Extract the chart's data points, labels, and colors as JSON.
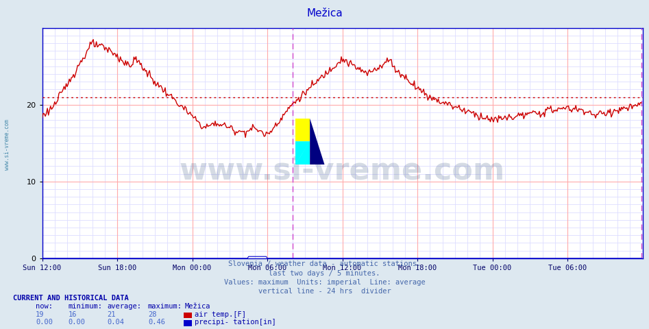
{
  "title": "Mežica",
  "title_color": "#0000cc",
  "background_color": "#dde8f0",
  "plot_bg_color": "#ffffff",
  "grid_color_major": "#ffaaaa",
  "grid_color_minor": "#ddddff",
  "x_labels": [
    "Sun 12:00",
    "Sun 18:00",
    "Mon 00:00",
    "Mon 06:00",
    "Mon 12:00",
    "Mon 18:00",
    "Tue 00:00",
    "Tue 06:00"
  ],
  "x_label_color": "#000066",
  "y_ticks": [
    0,
    10,
    20
  ],
  "ylim": [
    0,
    30
  ],
  "line_color": "#cc0000",
  "avg_line_color": "#cc0000",
  "avg_line_value": 21,
  "vertical_line_color": "#cc44cc",
  "subtitle_lines": [
    "Slovenia / weather data - automatic stations.",
    "last two days / 5 minutes.",
    "Values: maximum  Units: imperial  Line: average",
    "vertical line - 24 hrs  divider"
  ],
  "subtitle_color": "#4466aa",
  "watermark": "www.si-vreme.com",
  "watermark_color": "#1a3a6a",
  "watermark_alpha": 0.18,
  "legend_title": "CURRENT AND HISTORICAL DATA",
  "legend_color": "#0000aa",
  "legend_headers": [
    "now:",
    "minimum:",
    "average:",
    "maximum:",
    "Mežica"
  ],
  "legend_row1": [
    "19",
    "16",
    "21",
    "28"
  ],
  "legend_row2": [
    "0.00",
    "0.00",
    "0.04",
    "0.46"
  ],
  "legend_item1": "air temp.[F]",
  "legend_item1_color": "#cc0000",
  "legend_item2": "precipi- tation[in]",
  "legend_item2_color": "#0000cc",
  "left_label": "www.si-vreme.com",
  "left_label_color": "#4488aa",
  "axis_color": "#0000aa",
  "spine_color": "#0000cc"
}
